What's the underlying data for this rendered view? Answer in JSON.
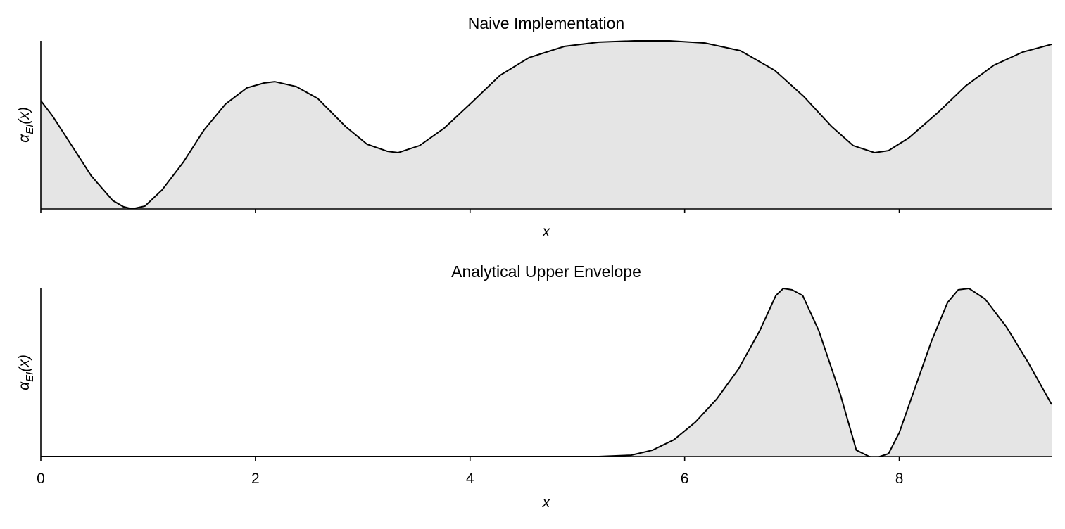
{
  "chart_data": [
    {
      "type": "area",
      "title": "Naive Implementation",
      "xlabel": "x",
      "ylabel": [
        "α",
        "EI",
        "(x)"
      ],
      "fill": "#e5e5e5",
      "color": "#000000",
      "show_xtick_labels": false,
      "x": [
        0,
        0.11,
        0.28,
        0.47,
        0.67,
        0.77,
        0.85,
        0.97,
        1.13,
        1.33,
        1.52,
        1.72,
        1.92,
        2.08,
        2.18,
        2.38,
        2.58,
        2.84,
        3.04,
        3.23,
        3.33,
        3.53,
        3.76,
        4.02,
        4.28,
        4.55,
        4.88,
        5.2,
        5.53,
        5.86,
        6.19,
        6.52,
        6.84,
        7.11,
        7.37,
        7.57,
        7.77,
        7.9,
        8.09,
        8.36,
        8.62,
        8.88,
        9.15,
        9.42
      ],
      "values": [
        0.644,
        0.552,
        0.385,
        0.197,
        0.05,
        0.013,
        0,
        0.017,
        0.113,
        0.28,
        0.469,
        0.623,
        0.72,
        0.749,
        0.757,
        0.728,
        0.657,
        0.49,
        0.385,
        0.343,
        0.335,
        0.377,
        0.481,
        0.636,
        0.795,
        0.9,
        0.967,
        0.992,
        1.0,
        1.0,
        0.987,
        0.941,
        0.824,
        0.669,
        0.49,
        0.377,
        0.335,
        0.347,
        0.423,
        0.573,
        0.732,
        0.854,
        0.933,
        0.979
      ],
      "xlim": [
        0,
        9.42
      ],
      "xticks": [
        0,
        2,
        4,
        6,
        8
      ],
      "ylim": [
        0,
        1
      ]
    },
    {
      "type": "area",
      "title": "Analytical Upper Envelope",
      "xlabel": "x",
      "ylabel": [
        "α",
        "EI",
        "(x)"
      ],
      "fill": "#e5e5e5",
      "color": "#000000",
      "show_xtick_labels": true,
      "x": [
        0,
        1,
        2,
        3,
        4,
        5,
        5.2,
        5.5,
        5.7,
        5.9,
        6.1,
        6.3,
        6.5,
        6.7,
        6.85,
        6.92,
        7.0,
        7.1,
        7.25,
        7.45,
        7.6,
        7.72,
        7.78,
        7.9,
        8.0,
        8.15,
        8.3,
        8.45,
        8.55,
        8.65,
        8.8,
        9.0,
        9.2,
        9.42
      ],
      "values": [
        0,
        0,
        0,
        0,
        0,
        0,
        0,
        0.008,
        0.038,
        0.1,
        0.205,
        0.343,
        0.519,
        0.749,
        0.958,
        1.0,
        0.992,
        0.958,
        0.749,
        0.372,
        0.038,
        0,
        -0.008,
        0.017,
        0.142,
        0.414,
        0.686,
        0.916,
        0.992,
        1.0,
        0.937,
        0.77,
        0.561,
        0.31
      ],
      "xlim": [
        0,
        9.42
      ],
      "xticks": [
        0,
        2,
        4,
        6,
        8
      ],
      "ylim": [
        0,
        1
      ]
    }
  ]
}
